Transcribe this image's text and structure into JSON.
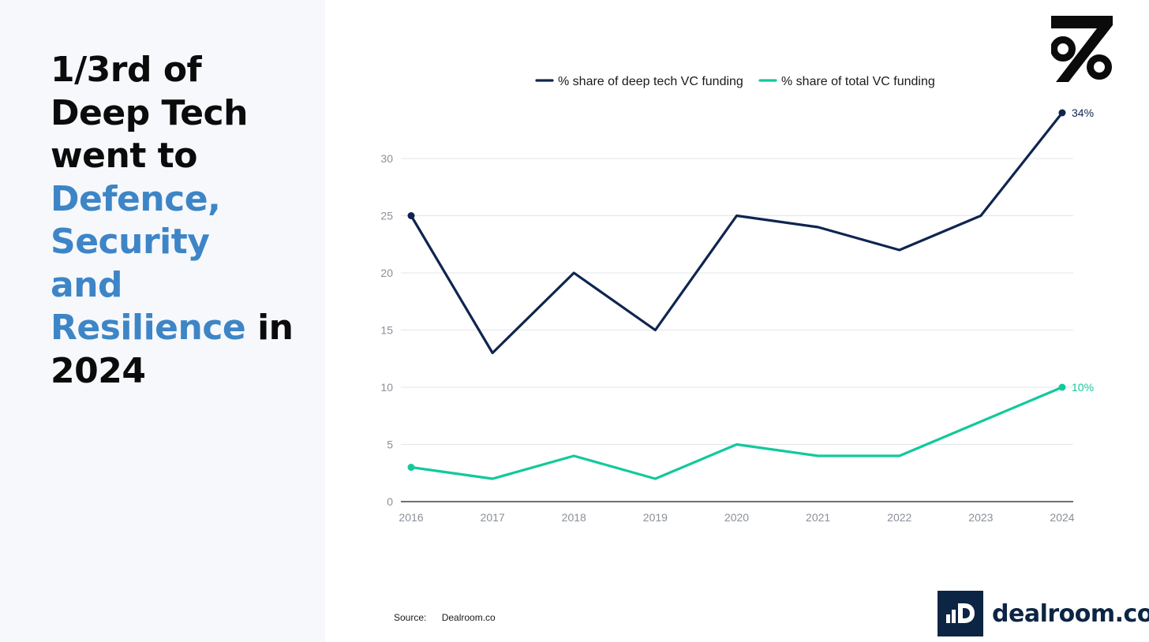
{
  "headline": {
    "line1": "1/3rd of",
    "line2": "Deep Tech",
    "line3": "went to",
    "accent1": "Defence,",
    "accent2": "Security",
    "accent3": "and",
    "accent4": "Resilience",
    "tail": " in",
    "year": "2024"
  },
  "source": {
    "label": "Source:",
    "value": "Dealroom.co"
  },
  "dealroom_logo": {
    "text": "dealroom.co",
    "color": "#0d2544"
  },
  "chart_data": {
    "type": "line",
    "title": "",
    "xlabel": "",
    "ylabel": "",
    "x": [
      "2016",
      "2017",
      "2018",
      "2019",
      "2020",
      "2021",
      "2022",
      "2023",
      "2024"
    ],
    "ylim": [
      0,
      35
    ],
    "yticks": [
      0,
      5,
      10,
      15,
      20,
      25,
      30
    ],
    "grid": true,
    "legend_position": "top",
    "series": [
      {
        "name": "% share of deep tech VC funding",
        "color": "#0f2550",
        "values": [
          25,
          13,
          20,
          15,
          25,
          24,
          22,
          25,
          34
        ],
        "end_label": "34%"
      },
      {
        "name": "% share of total VC funding",
        "color": "#12c99b",
        "values": [
          3,
          2,
          4,
          2,
          5,
          4,
          4,
          7,
          10
        ],
        "end_label": "10%"
      }
    ]
  }
}
